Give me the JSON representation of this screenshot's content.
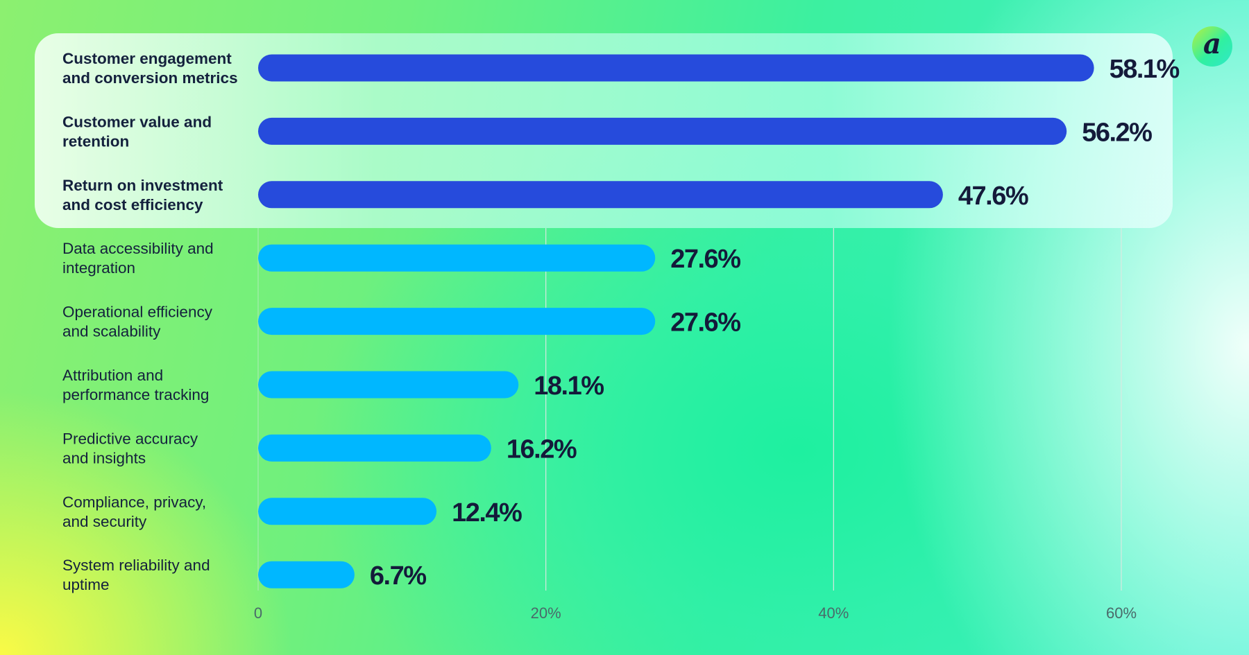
{
  "logo": {
    "letter": "a"
  },
  "colors": {
    "highlight_bar": "#264bdc",
    "bar": "#00b7ff",
    "text": "#14213d",
    "grid": "#d8e8e0"
  },
  "chart_data": {
    "type": "bar",
    "orientation": "horizontal",
    "categories": [
      [
        "Customer engagement",
        "and conversion metrics"
      ],
      [
        "Customer value and",
        "retention"
      ],
      [
        "Return on investment",
        "and cost efficiency"
      ],
      [
        "Data accessibility and",
        "integration"
      ],
      [
        "Operational efficiency",
        "and scalability"
      ],
      [
        "Attribution and",
        "performance tracking"
      ],
      [
        "Predictive accuracy",
        "and insights"
      ],
      [
        "Compliance, privacy,",
        "and security"
      ],
      [
        "System reliability and",
        "uptime"
      ]
    ],
    "values": [
      58.1,
      56.2,
      47.6,
      27.6,
      27.6,
      18.1,
      16.2,
      12.4,
      6.7
    ],
    "value_labels": [
      "58.1%",
      "56.2%",
      "47.6%",
      "27.6%",
      "27.6%",
      "18.1%",
      "16.2%",
      "12.4%",
      "6.7%"
    ],
    "highlighted": [
      true,
      true,
      true,
      false,
      false,
      false,
      false,
      false,
      false
    ],
    "xlim": [
      0,
      60
    ],
    "xticks": [
      0,
      20,
      40,
      60
    ],
    "xtick_labels": [
      "0",
      "20%",
      "40%",
      "60%"
    ],
    "grid": "vertical",
    "title": "",
    "xlabel": "",
    "ylabel": ""
  }
}
